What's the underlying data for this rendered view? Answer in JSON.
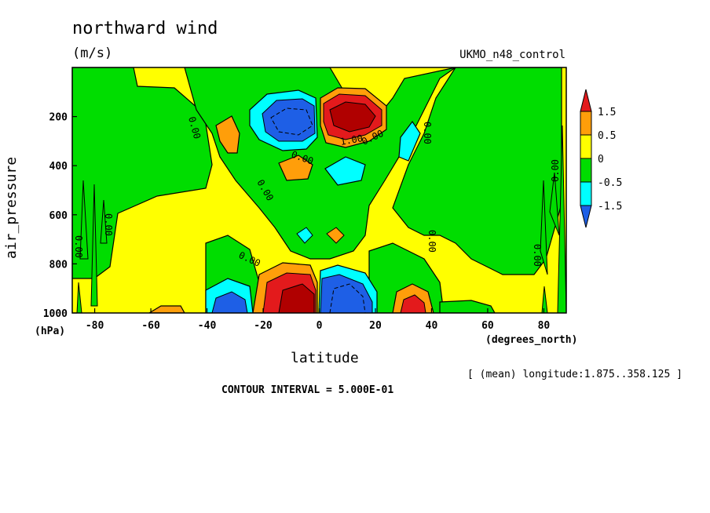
{
  "chart_data": {
    "type": "contour",
    "title": "northward wind",
    "units": "(m/s)",
    "dataset": "UKMO_n48_control",
    "xlabel": "latitude",
    "xunits": "(degrees_north)",
    "ylabel": "air_pressure",
    "yunits": "(hPa)",
    "xlim": [
      -88,
      88
    ],
    "ylim": [
      1000,
      0
    ],
    "xticks": [
      -80,
      -60,
      -40,
      -20,
      0,
      20,
      40,
      60,
      80
    ],
    "yticks": [
      200,
      400,
      600,
      800,
      1000
    ],
    "contour_interval_text": "CONTOUR INTERVAL = 5.000E-01",
    "footer_text": "[ (mean) longitude:1.875..358.125 ]",
    "contour_labels": [
      "0.00",
      "1.00"
    ],
    "colorbar": {
      "labels": [
        "1.5",
        "0.5",
        "0",
        "-0.5",
        "-1.5"
      ],
      "colors": [
        "#e31a1c",
        "#ff9e0a",
        "#ffff00",
        "#00dd00",
        "#00ffff",
        "#1e5fe6"
      ]
    },
    "colors": {
      "deep_red": "#c81414",
      "red": "#e31a1c",
      "orange": "#ff9e0a",
      "yellow": "#ffff00",
      "green": "#00dd00",
      "cyan": "#00ffff",
      "blue": "#1e5fe6"
    }
  }
}
